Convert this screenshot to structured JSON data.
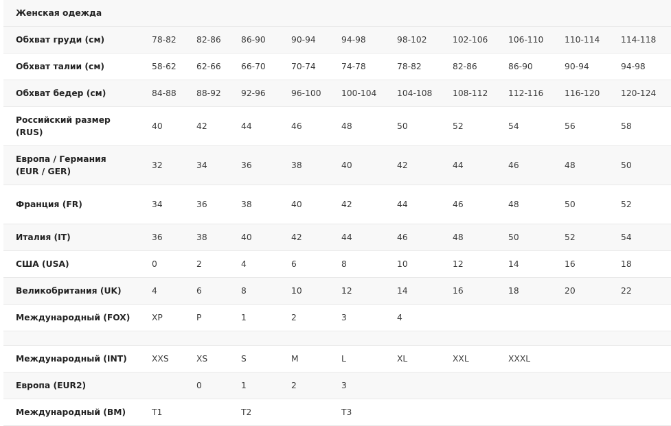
{
  "table": {
    "title": "Женская одежда",
    "rows": [
      {
        "label": "Обхват груди (см)",
        "values": [
          "78-82",
          "82-86",
          "86-90",
          "90-94",
          "94-98",
          "98-102",
          "102-106",
          "106-110",
          "110-114",
          "114-118"
        ]
      },
      {
        "label": "Обхват талии (см)",
        "values": [
          "58-62",
          "62-66",
          "66-70",
          "70-74",
          "74-78",
          "78-82",
          "82-86",
          "86-90",
          "90-94",
          "94-98"
        ]
      },
      {
        "label": "Обхват бедер (см)",
        "values": [
          "84-88",
          "88-92",
          "92-96",
          "96-100",
          "100-104",
          "104-108",
          "108-112",
          "112-116",
          "116-120",
          "120-124"
        ]
      },
      {
        "label": "Российский размер (RUS)",
        "values": [
          "40",
          "42",
          "44",
          "46",
          "48",
          "50",
          "52",
          "54",
          "56",
          "58"
        ]
      },
      {
        "label": "Европа / Германия (EUR / GER)",
        "values": [
          "32",
          "34",
          "36",
          "38",
          "40",
          "42",
          "44",
          "46",
          "48",
          "50"
        ]
      },
      {
        "label": "Франция (FR)",
        "values": [
          "34",
          "36",
          "38",
          "40",
          "42",
          "44",
          "46",
          "48",
          "50",
          "52"
        ]
      },
      {
        "label": "Италия (IT)",
        "values": [
          "36",
          "38",
          "40",
          "42",
          "44",
          "46",
          "48",
          "50",
          "52",
          "54"
        ]
      },
      {
        "label": "США (USA)",
        "values": [
          "0",
          "2",
          "4",
          "6",
          "8",
          "10",
          "12",
          "14",
          "16",
          "18"
        ]
      },
      {
        "label": "Великобритания (UK)",
        "values": [
          "4",
          "6",
          "8",
          "10",
          "12",
          "14",
          "16",
          "18",
          "20",
          "22"
        ]
      },
      {
        "label": "Международный (FOX)",
        "values": [
          "XP",
          "P",
          "1",
          "2",
          "3",
          "4",
          "",
          "",
          "",
          ""
        ]
      },
      {
        "label": "",
        "values": [
          "",
          "",
          "",
          "",
          "",
          "",
          "",
          "",
          "",
          ""
        ]
      },
      {
        "label": "Международный (INT)",
        "values": [
          "XXS",
          "XS",
          "S",
          "M",
          "L",
          "XL",
          "XXL",
          "XXXL",
          "",
          ""
        ]
      },
      {
        "label": "Европа (EUR2)",
        "values": [
          "",
          "0",
          "1",
          "2",
          "3",
          "",
          "",
          "",
          "",
          ""
        ]
      },
      {
        "label": "Международный (BM)",
        "values": [
          "T1",
          "",
          "T2",
          "",
          "T3",
          "",
          "",
          "",
          "",
          ""
        ]
      }
    ]
  }
}
